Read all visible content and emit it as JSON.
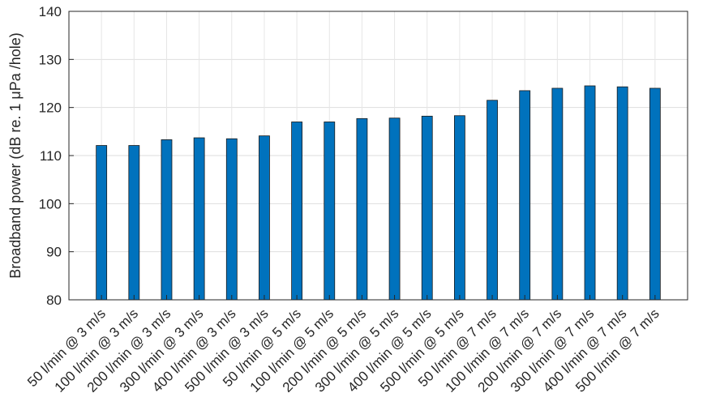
{
  "chart_data": {
    "type": "bar",
    "title": "",
    "xlabel": "",
    "ylabel": "Broadband power (dB re. 1 μPa /hole)",
    "ylim": [
      80,
      140
    ],
    "yticks": [
      80,
      90,
      100,
      110,
      120,
      130,
      140
    ],
    "grid": true,
    "bar_color": "#0072bd",
    "categories": [
      "50 l/min @ 3 m/s",
      "100 l/min @ 3 m/s",
      "200 l/min @ 3 m/s",
      "300 l/min @ 3 m/s",
      "400 l/min @ 3 m/s",
      "500 l/min @ 3 m/s",
      "50 l/min @ 5 m/s",
      "100 l/min @ 5 m/s",
      "200 l/min @ 5 m/s",
      "300 l/min @ 5 m/s",
      "400 l/min @ 5 m/s",
      "500 l/min @ 5 m/s",
      "50 l/min @ 7 m/s",
      "100 l/min @ 7 m/s",
      "200 l/min @ 7 m/s",
      "300 l/min @ 7 m/s",
      "400 l/min @ 7 m/s",
      "500 l/min @ 7 m/s"
    ],
    "values": [
      112.1,
      112.1,
      113.3,
      113.7,
      113.5,
      114.1,
      117.0,
      117.0,
      117.7,
      117.8,
      118.2,
      118.3,
      121.5,
      123.5,
      124.0,
      124.5,
      124.3,
      124.0
    ]
  }
}
